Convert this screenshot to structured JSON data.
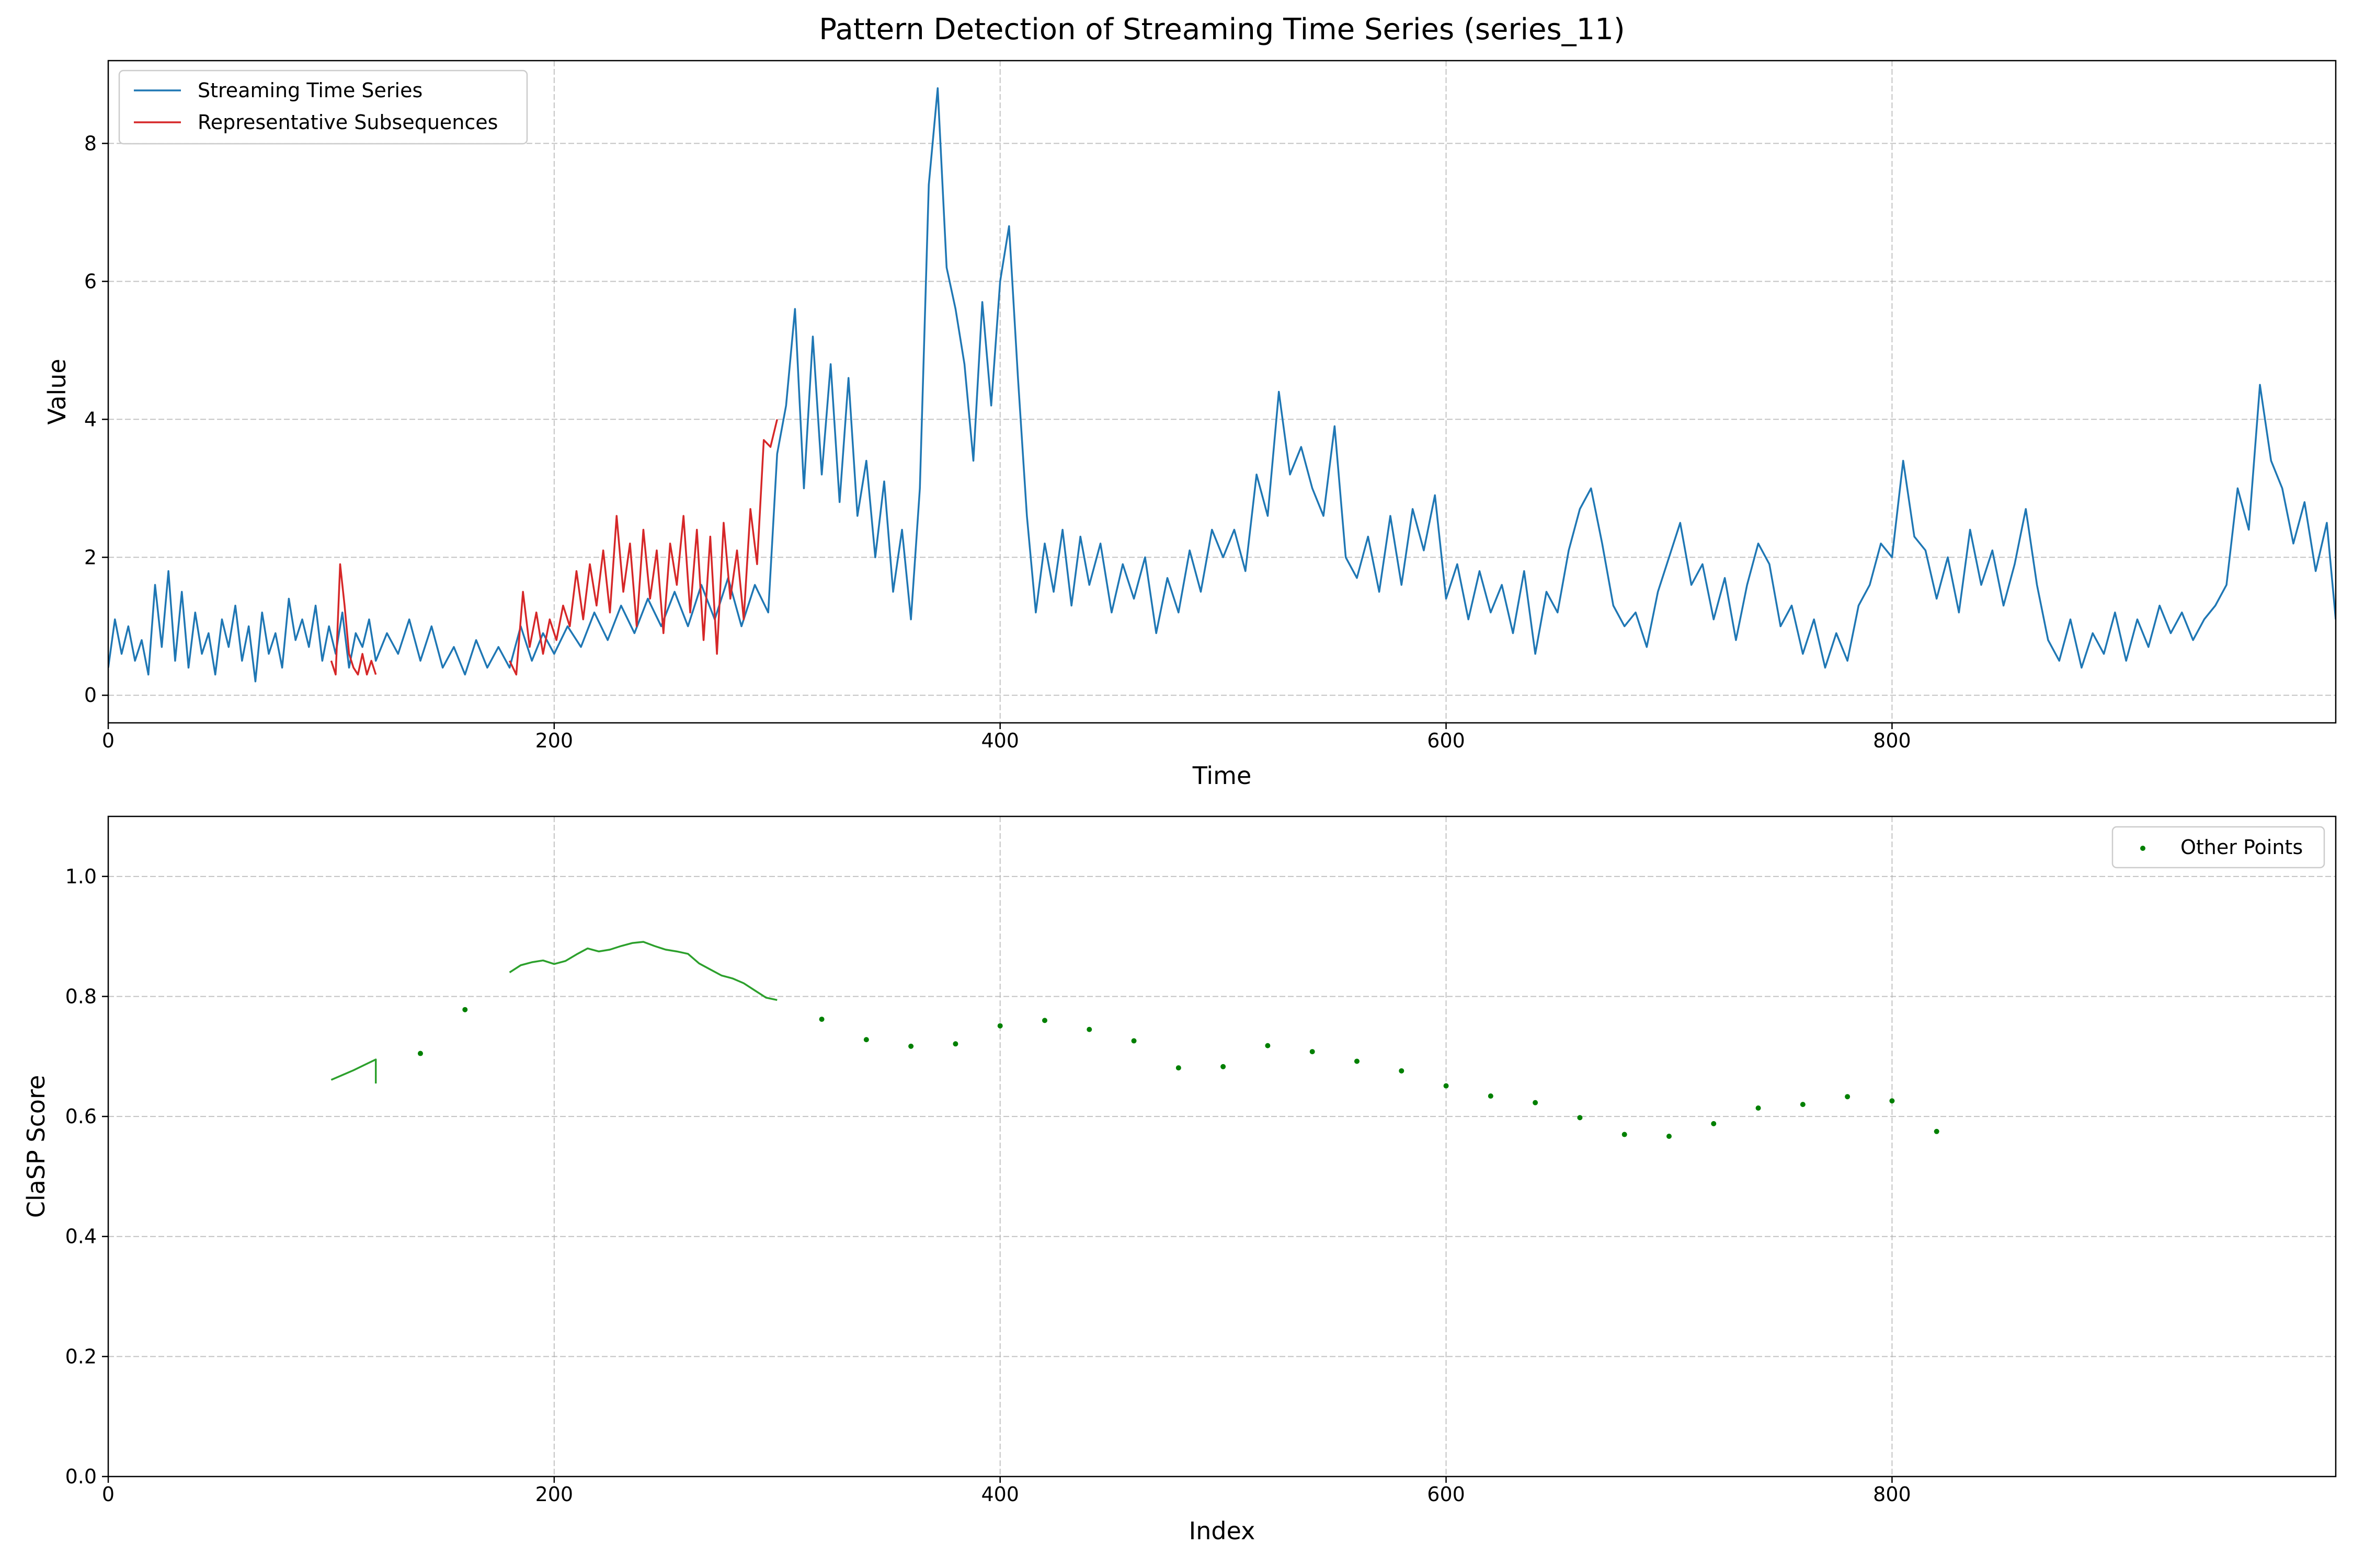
{
  "chart_data": [
    {
      "type": "line",
      "title": "Pattern Detection of Streaming Time Series (series_11)",
      "xlabel": "Time",
      "ylabel": "Value",
      "xlim": [
        0,
        999
      ],
      "ylim": [
        -0.4,
        9.2
      ],
      "x_ticks": [
        0,
        200,
        400,
        600,
        800
      ],
      "x_tick_labels": [
        "0",
        "200",
        "400",
        "600",
        "800"
      ],
      "y_ticks": [
        0,
        2,
        4,
        6,
        8
      ],
      "y_tick_labels": [
        "0",
        "2",
        "4",
        "6",
        "8"
      ],
      "grid": true,
      "legend_position": "top-left",
      "series": [
        {
          "name": "Streaming Time Series",
          "color": "#1f77b4",
          "x": [
            0,
            3,
            6,
            9,
            12,
            15,
            18,
            21,
            24,
            27,
            30,
            33,
            36,
            39,
            42,
            45,
            48,
            51,
            54,
            57,
            60,
            63,
            66,
            69,
            72,
            75,
            78,
            81,
            84,
            87,
            90,
            93,
            96,
            99,
            102,
            105,
            108,
            111,
            114,
            117,
            120,
            125,
            130,
            135,
            140,
            145,
            150,
            155,
            160,
            165,
            170,
            175,
            180,
            185,
            190,
            195,
            200,
            206,
            212,
            218,
            224,
            230,
            236,
            242,
            248,
            254,
            260,
            266,
            272,
            278,
            284,
            290,
            296,
            300,
            304,
            308,
            312,
            316,
            320,
            324,
            328,
            332,
            336,
            340,
            344,
            348,
            352,
            356,
            360,
            364,
            368,
            372,
            376,
            380,
            384,
            388,
            392,
            396,
            400,
            404,
            408,
            412,
            416,
            420,
            424,
            428,
            432,
            436,
            440,
            445,
            450,
            455,
            460,
            465,
            470,
            475,
            480,
            485,
            490,
            495,
            500,
            505,
            510,
            515,
            520,
            525,
            530,
            535,
            540,
            545,
            550,
            555,
            560,
            565,
            570,
            575,
            580,
            585,
            590,
            595,
            600,
            605,
            610,
            615,
            620,
            625,
            630,
            635,
            640,
            645,
            650,
            655,
            660,
            665,
            670,
            675,
            680,
            685,
            690,
            695,
            700,
            705,
            710,
            715,
            720,
            725,
            730,
            735,
            740,
            745,
            750,
            755,
            760,
            765,
            770,
            775,
            780,
            785,
            790,
            795,
            800,
            805,
            810,
            815,
            820,
            825,
            830,
            835,
            840,
            845,
            850,
            855,
            860,
            865,
            870,
            875,
            880,
            885,
            890,
            895,
            900,
            905,
            910,
            915,
            920,
            925,
            930,
            935,
            940,
            945,
            950,
            955,
            960,
            965,
            970,
            975,
            980,
            985,
            990,
            995,
            999
          ],
          "y": [
            0.4,
            1.1,
            0.6,
            1.0,
            0.5,
            0.8,
            0.3,
            1.6,
            0.7,
            1.8,
            0.5,
            1.5,
            0.4,
            1.2,
            0.6,
            0.9,
            0.3,
            1.1,
            0.7,
            1.3,
            0.5,
            1.0,
            0.2,
            1.2,
            0.6,
            0.9,
            0.4,
            1.4,
            0.8,
            1.1,
            0.7,
            1.3,
            0.5,
            1.0,
            0.6,
            1.2,
            0.4,
            0.9,
            0.7,
            1.1,
            0.5,
            0.9,
            0.6,
            1.1,
            0.5,
            1.0,
            0.4,
            0.7,
            0.3,
            0.8,
            0.4,
            0.7,
            0.4,
            1.0,
            0.5,
            0.9,
            0.6,
            1.0,
            0.7,
            1.2,
            0.8,
            1.3,
            0.9,
            1.4,
            1.0,
            1.5,
            1.0,
            1.6,
            1.1,
            1.7,
            1.0,
            1.6,
            1.2,
            3.5,
            4.2,
            5.6,
            3.0,
            5.2,
            3.2,
            4.8,
            2.8,
            4.6,
            2.6,
            3.4,
            2.0,
            3.1,
            1.5,
            2.4,
            1.1,
            3.0,
            7.4,
            8.8,
            6.2,
            5.6,
            4.8,
            3.4,
            5.7,
            4.2,
            6.0,
            6.8,
            4.6,
            2.6,
            1.2,
            2.2,
            1.5,
            2.4,
            1.3,
            2.3,
            1.6,
            2.2,
            1.2,
            1.9,
            1.4,
            2.0,
            0.9,
            1.7,
            1.2,
            2.1,
            1.5,
            2.4,
            2.0,
            2.4,
            1.8,
            3.2,
            2.6,
            4.4,
            3.2,
            3.6,
            3.0,
            2.6,
            3.9,
            2.0,
            1.7,
            2.3,
            1.5,
            2.6,
            1.6,
            2.7,
            2.1,
            2.9,
            1.4,
            1.9,
            1.1,
            1.8,
            1.2,
            1.6,
            0.9,
            1.8,
            0.6,
            1.5,
            1.2,
            2.1,
            2.7,
            3.0,
            2.2,
            1.3,
            1.0,
            1.2,
            0.7,
            1.5,
            2.0,
            2.5,
            1.6,
            1.9,
            1.1,
            1.7,
            0.8,
            1.6,
            2.2,
            1.9,
            1.0,
            1.3,
            0.6,
            1.1,
            0.4,
            0.9,
            0.5,
            1.3,
            1.6,
            2.2,
            2.0,
            3.4,
            2.3,
            2.1,
            1.4,
            2.0,
            1.2,
            2.4,
            1.6,
            2.1,
            1.3,
            1.9,
            2.7,
            1.6,
            0.8,
            0.5,
            1.1,
            0.4,
            0.9,
            0.6,
            1.2,
            0.5,
            1.1,
            0.7,
            1.3,
            0.9,
            1.2,
            0.8,
            1.1,
            1.3,
            1.6,
            3.0,
            2.4,
            4.5,
            3.4,
            3.0,
            2.2,
            2.8,
            1.8,
            2.5,
            1.1
          ]
        },
        {
          "name": "Representative Subsequences",
          "color": "#d62728",
          "x": [
            100,
            102,
            104,
            106,
            108,
            110,
            112,
            114,
            116,
            118,
            120,
            180,
            183,
            186,
            189,
            192,
            195,
            198,
            201,
            204,
            207,
            210,
            213,
            216,
            219,
            222,
            225,
            228,
            231,
            234,
            237,
            240,
            243,
            246,
            249,
            252,
            255,
            258,
            261,
            264,
            267,
            270,
            273,
            276,
            279,
            282,
            285,
            288,
            291,
            294,
            297,
            300
          ],
          "y": [
            0.5,
            0.3,
            1.9,
            1.3,
            0.6,
            0.4,
            0.3,
            0.6,
            0.3,
            0.5,
            0.3,
            0.5,
            0.3,
            1.5,
            0.7,
            1.2,
            0.6,
            1.1,
            0.8,
            1.3,
            1.0,
            1.8,
            1.1,
            1.9,
            1.3,
            2.1,
            1.2,
            2.6,
            1.5,
            2.2,
            1.0,
            2.4,
            1.4,
            2.1,
            0.9,
            2.2,
            1.6,
            2.6,
            1.2,
            2.4,
            0.8,
            2.3,
            0.6,
            2.5,
            1.4,
            2.1,
            1.1,
            2.7,
            1.9,
            3.7,
            3.6,
            4.0
          ]
        }
      ]
    },
    {
      "type": "line",
      "title": "",
      "xlabel": "Index",
      "ylabel": "ClaSP Score",
      "xlim": [
        0,
        999
      ],
      "ylim": [
        0.0,
        1.1
      ],
      "x_ticks": [
        0,
        200,
        400,
        600,
        800
      ],
      "x_tick_labels": [
        "0",
        "200",
        "400",
        "600",
        "800"
      ],
      "y_ticks": [
        0.0,
        0.2,
        0.4,
        0.6,
        0.8,
        1.0
      ],
      "y_tick_labels": [
        "0.0",
        "0.2",
        "0.4",
        "0.6",
        "0.8",
        "1.0"
      ],
      "grid": true,
      "legend_position": "top-right",
      "segments": [
        {
          "color": "#2ca02c",
          "x": [
            100,
            105,
            110,
            115,
            120,
            120
          ],
          "y": [
            0.661,
            0.669,
            0.677,
            0.686,
            0.695,
            0.655
          ]
        },
        {
          "color": "#2ca02c",
          "x": [
            180,
            185,
            190,
            195,
            200,
            205,
            210,
            215,
            220,
            225,
            230,
            235,
            240,
            245,
            250,
            255,
            260,
            265,
            270,
            275,
            280,
            285,
            290,
            295,
            300
          ],
          "y": [
            0.84,
            0.852,
            0.857,
            0.86,
            0.854,
            0.859,
            0.87,
            0.88,
            0.875,
            0.878,
            0.884,
            0.889,
            0.891,
            0.884,
            0.878,
            0.875,
            0.871,
            0.855,
            0.845,
            0.835,
            0.83,
            0.822,
            0.81,
            0.798,
            0.794
          ]
        }
      ],
      "series": [
        {
          "name": "Other Points",
          "color": "#008000",
          "x": [
            140,
            160,
            320,
            340,
            360,
            380,
            400,
            420,
            440,
            460,
            480,
            500,
            520,
            540,
            560,
            580,
            600,
            620,
            640,
            660,
            680,
            700,
            720,
            740,
            760,
            780,
            800,
            820
          ],
          "y": [
            0.705,
            0.778,
            0.762,
            0.728,
            0.717,
            0.721,
            0.751,
            0.76,
            0.745,
            0.726,
            0.681,
            0.683,
            0.718,
            0.708,
            0.692,
            0.676,
            0.651,
            0.634,
            0.623,
            0.598,
            0.57,
            0.567,
            0.588,
            0.614,
            0.62,
            0.633,
            0.626,
            0.575
          ]
        }
      ]
    }
  ]
}
